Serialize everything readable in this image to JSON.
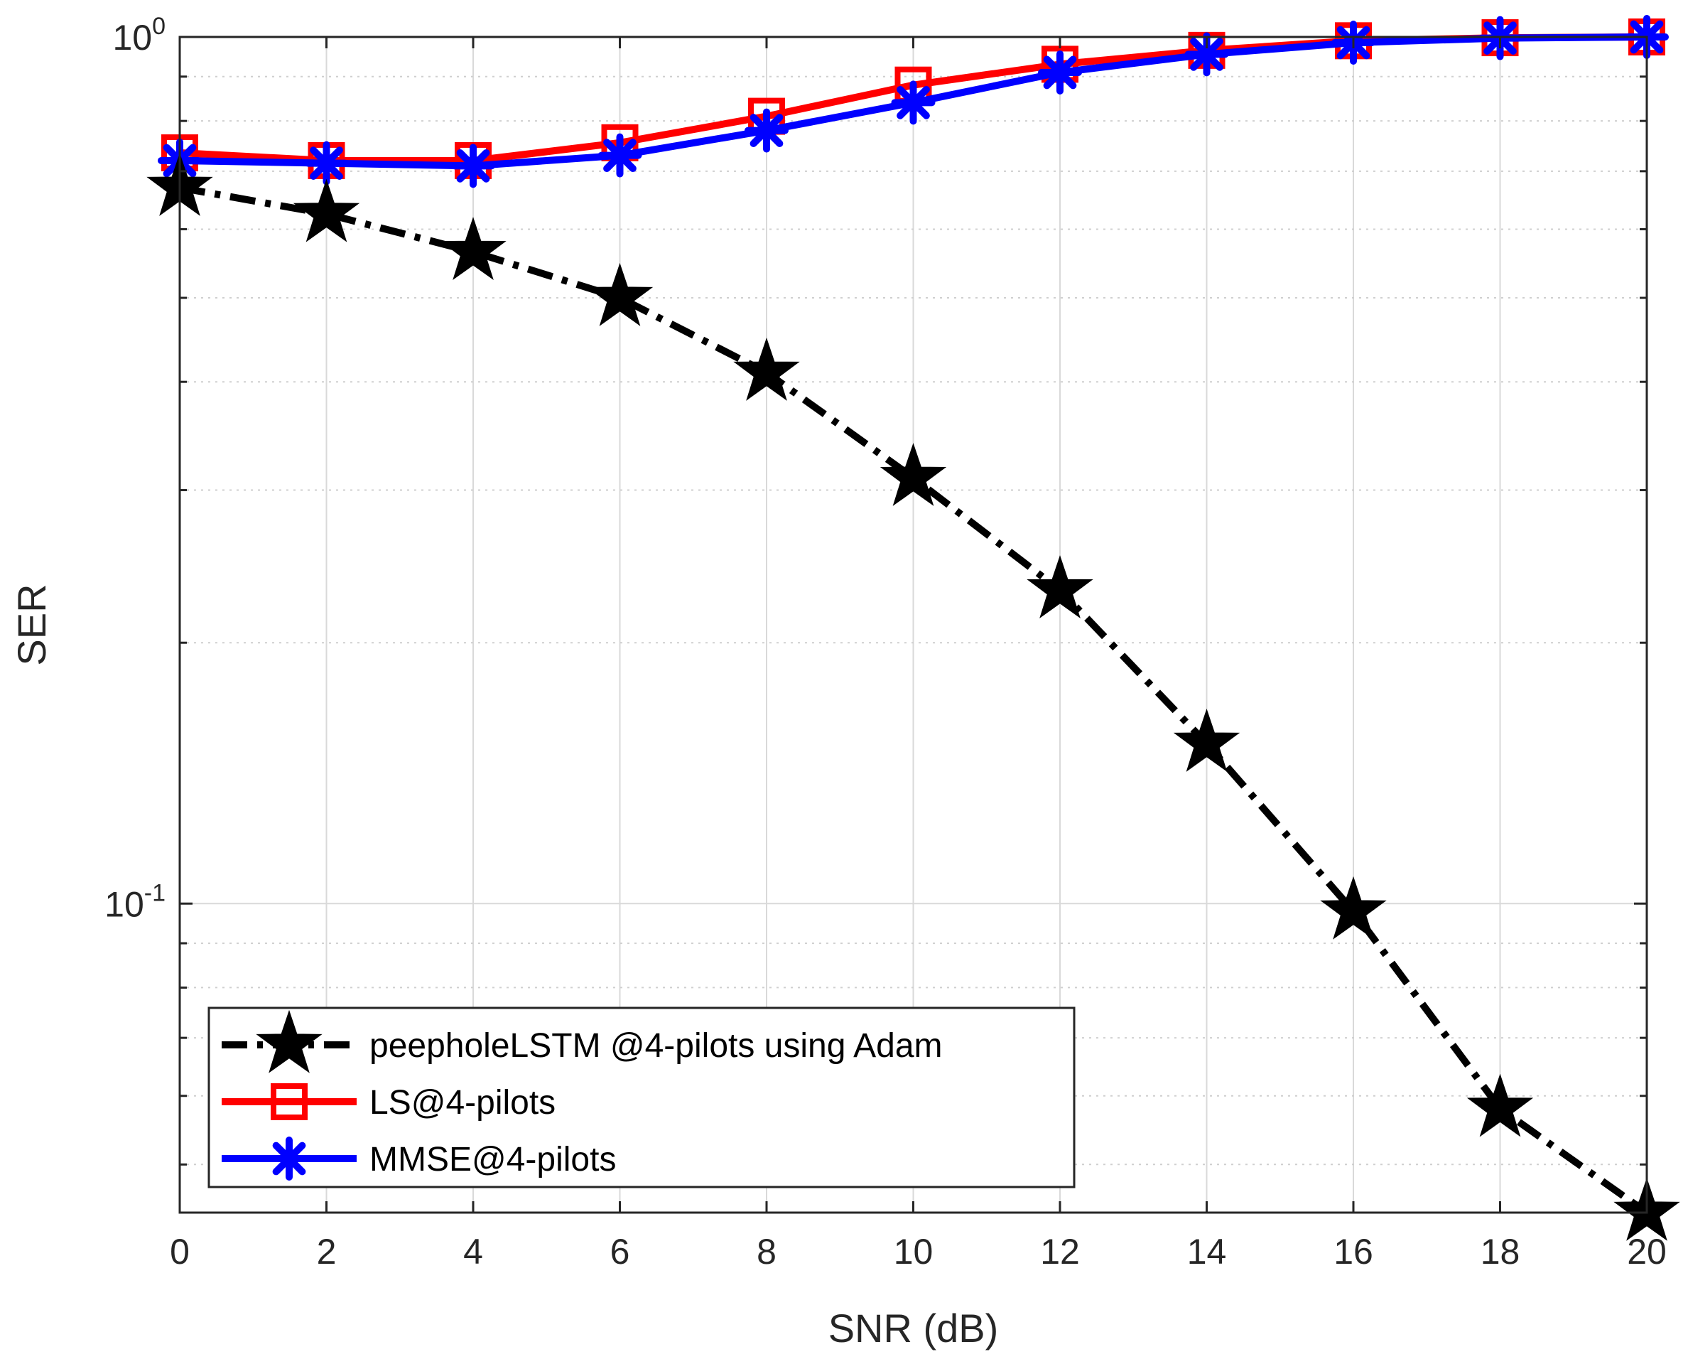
{
  "chart_data": {
    "type": "line",
    "title": "",
    "xlabel": "SNR (dB)",
    "ylabel": "SER",
    "x": [
      0,
      2,
      4,
      6,
      8,
      10,
      12,
      14,
      16,
      18,
      20
    ],
    "xticks": [
      "0",
      "2",
      "4",
      "6",
      "8",
      "10",
      "12",
      "14",
      "16",
      "18",
      "20"
    ],
    "xlim": [
      0,
      20
    ],
    "yscale": "log",
    "ylim": [
      0.044,
      1.0
    ],
    "yticks": [
      {
        "value": 1.0,
        "base": "10",
        "exp": "0"
      },
      {
        "value": 0.1,
        "base": "10",
        "exp": "-1"
      }
    ],
    "grid": true,
    "legend_position": "bottom-left",
    "series": [
      {
        "name": "peepholeLSTM @4-pilots using Adam",
        "color": "#000000",
        "line_style": "dash-dot",
        "marker": "pentagram",
        "values": [
          0.67,
          0.625,
          0.565,
          0.5,
          0.41,
          0.31,
          0.23,
          0.153,
          0.098,
          0.058,
          0.044
        ]
      },
      {
        "name": "LS@4-pilots",
        "color": "#ff0000",
        "line_style": "solid",
        "marker": "square",
        "values": [
          0.735,
          0.72,
          0.72,
          0.755,
          0.81,
          0.88,
          0.93,
          0.965,
          0.99,
          0.998,
          1.0
        ]
      },
      {
        "name": "MMSE@4-pilots",
        "color": "#0000ff",
        "line_style": "solid",
        "marker": "asterisk",
        "values": [
          0.72,
          0.715,
          0.71,
          0.73,
          0.78,
          0.84,
          0.91,
          0.955,
          0.985,
          0.997,
          1.0
        ]
      }
    ]
  }
}
